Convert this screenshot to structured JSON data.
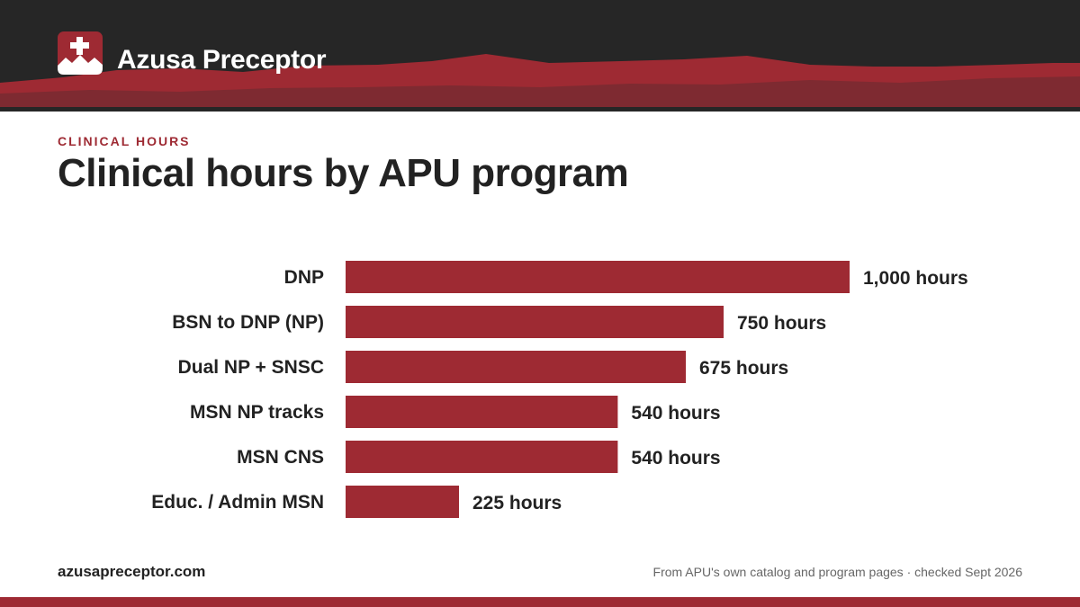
{
  "brand": {
    "name": "Azusa Preceptor"
  },
  "eyebrow": "CLINICAL HOURS",
  "title": "Clinical hours by APU program",
  "footer": {
    "site": "azusapreceptor.com",
    "source": "From APU's own catalog and program pages · checked Sept 2026"
  },
  "colors": {
    "accent": "#9e2a33",
    "dark": "#262626",
    "text": "#222222"
  },
  "chart_data": {
    "type": "bar",
    "orientation": "horizontal",
    "categories": [
      "DNP",
      "BSN to DNP (NP)",
      "Dual NP + SNSC",
      "MSN NP tracks",
      "MSN CNS",
      "Educ. / Admin MSN"
    ],
    "values": [
      1000,
      750,
      675,
      540,
      540,
      225
    ],
    "value_labels": [
      "1,000 hours",
      "750 hours",
      "675 hours",
      "540 hours",
      "540 hours",
      "225 hours"
    ],
    "unit": "hours",
    "xlim": [
      0,
      1000
    ],
    "grid": false,
    "legend": "none",
    "bar_color": "#9e2a33"
  }
}
